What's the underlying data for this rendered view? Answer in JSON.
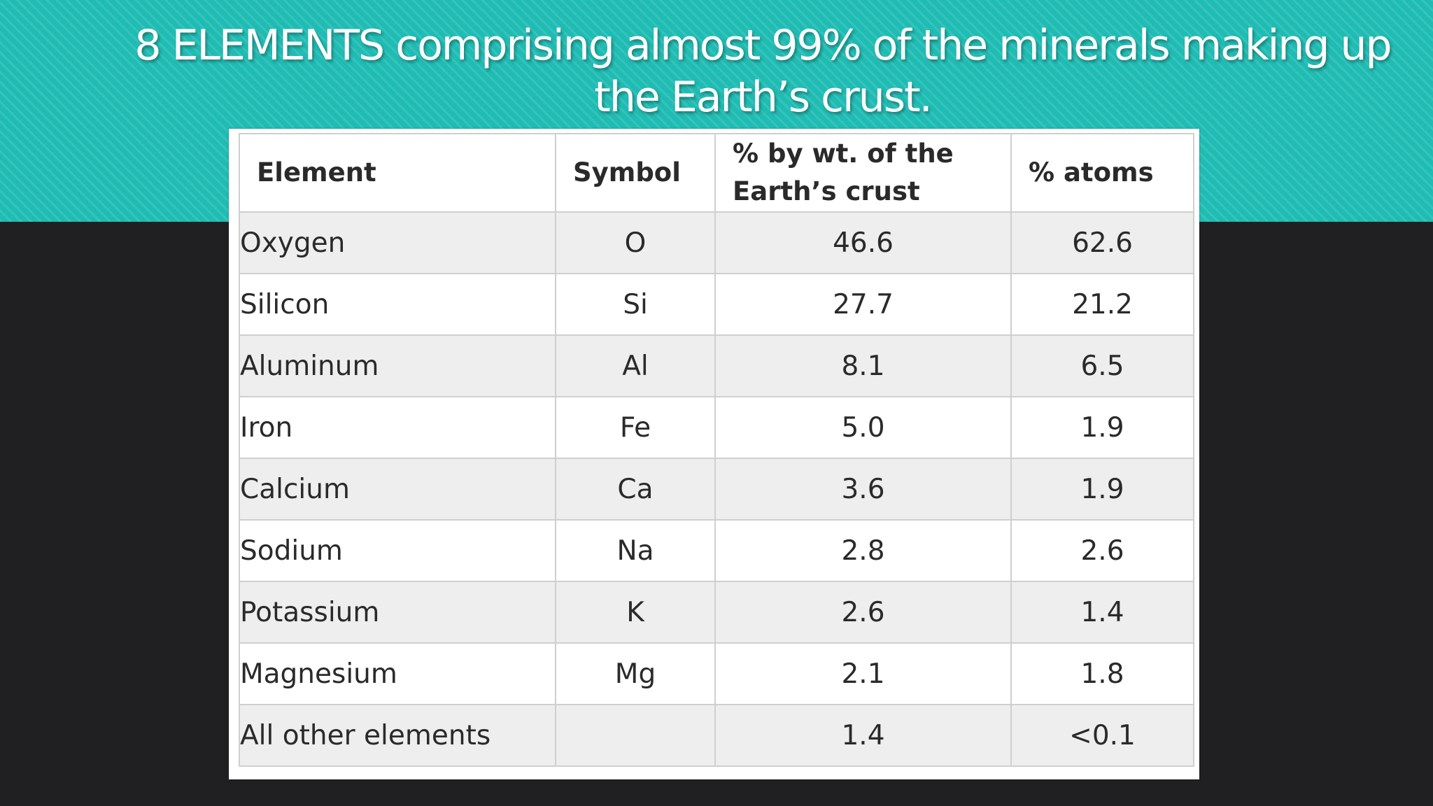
{
  "slide": {
    "title": "8 ELEMENTS comprising almost 99% of the minerals making up the Earth’s crust.",
    "banner_color": "#1fbcb3",
    "background_color": "#201f21"
  },
  "table": {
    "headers": {
      "element": "Element",
      "symbol": "Symbol",
      "percent_weight": "% by wt. of the Earth’s crust",
      "percent_atoms": "% atoms"
    },
    "rows": [
      {
        "element": "Oxygen",
        "symbol": "O",
        "percent_weight": "46.6",
        "percent_atoms": "62.6"
      },
      {
        "element": "Silicon",
        "symbol": "Si",
        "percent_weight": "27.7",
        "percent_atoms": "21.2"
      },
      {
        "element": "Aluminum",
        "symbol": "Al",
        "percent_weight": "8.1",
        "percent_atoms": "6.5"
      },
      {
        "element": "Iron",
        "symbol": "Fe",
        "percent_weight": "5.0",
        "percent_atoms": "1.9"
      },
      {
        "element": "Calcium",
        "symbol": "Ca",
        "percent_weight": "3.6",
        "percent_atoms": "1.9"
      },
      {
        "element": "Sodium",
        "symbol": "Na",
        "percent_weight": "2.8",
        "percent_atoms": "2.6"
      },
      {
        "element": "Potassium",
        "symbol": "K",
        "percent_weight": "2.6",
        "percent_atoms": "1.4"
      },
      {
        "element": "Magnesium",
        "symbol": "Mg",
        "percent_weight": "2.1",
        "percent_atoms": "1.8"
      },
      {
        "element": "All other elements",
        "symbol": "",
        "percent_weight": "1.4",
        "percent_atoms": "<0.1"
      }
    ]
  }
}
